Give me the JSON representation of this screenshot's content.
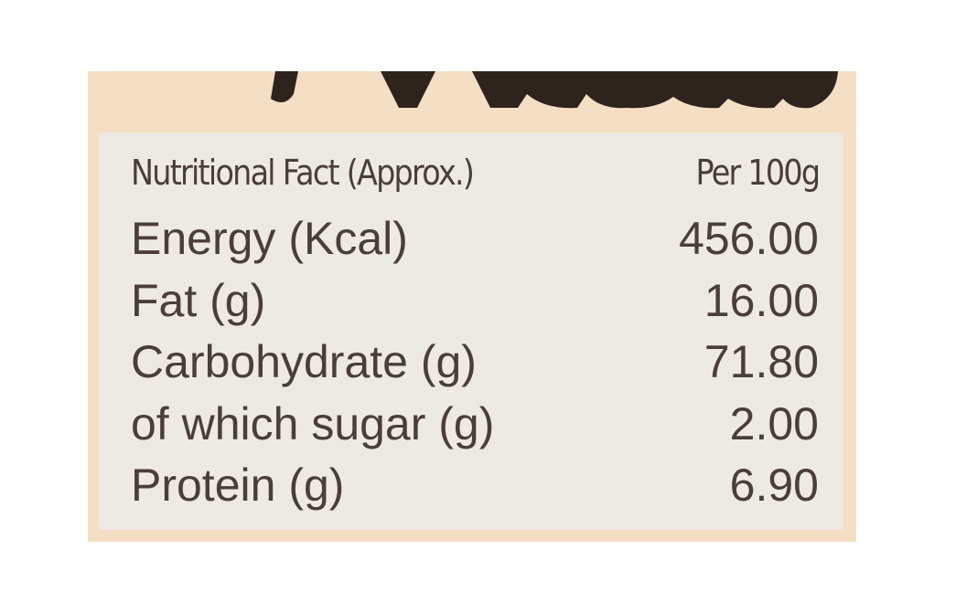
{
  "table": {
    "header": [
      "Nutritional Fact (Approx.)",
      "Per 100g"
    ],
    "rows": [
      [
        "Energy (Kcal)",
        "456.00"
      ],
      [
        "Fat (g)",
        "16.00"
      ],
      [
        "Carbohydrate (g)",
        "71.80"
      ],
      [
        "of which sugar (g)",
        "2.00"
      ],
      [
        "Protein (g)",
        "6.90"
      ]
    ]
  }
}
